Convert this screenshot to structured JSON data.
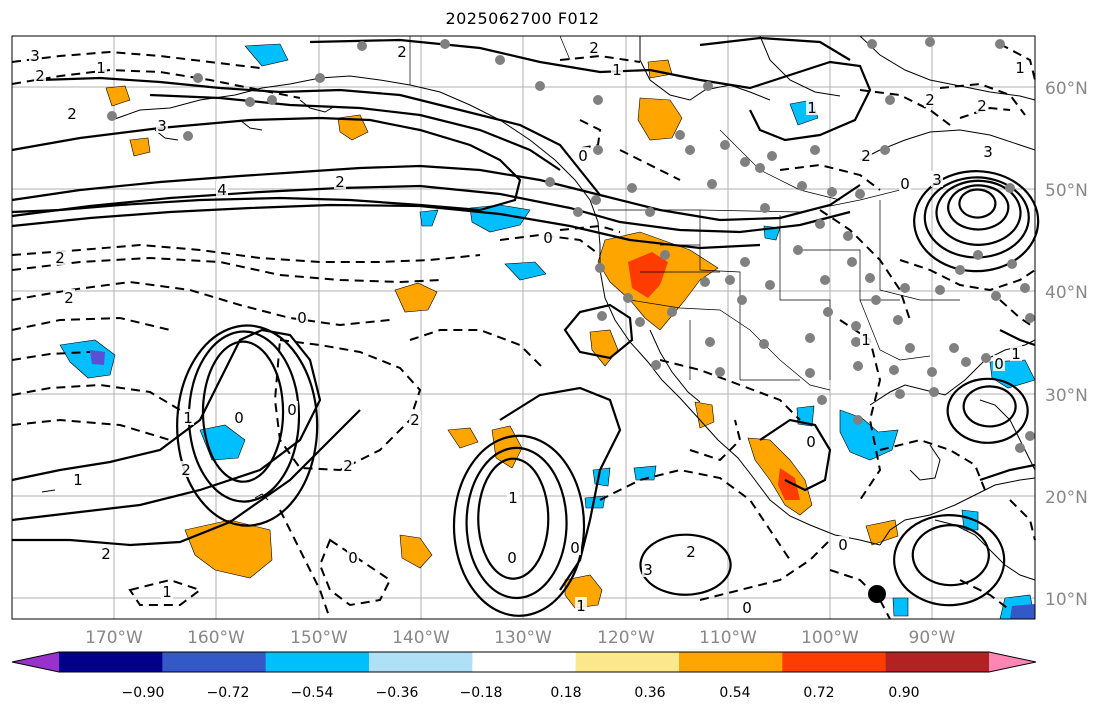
{
  "title": "2025062700 F012",
  "lat_labels": [
    "60°N",
    "50°N",
    "40°N",
    "30°N",
    "20°N",
    "10°N"
  ],
  "lon_labels": [
    "170°W",
    "160°W",
    "150°W",
    "140°W",
    "130°W",
    "120°W",
    "110°W",
    "100°W",
    "90°W"
  ],
  "colorbar": {
    "colors": [
      "#9932cc",
      "#00008b",
      "#3458c8",
      "#00bfff",
      "#b0e0f8",
      "#ffffff",
      "#fbe88c",
      "#ffa500",
      "#ff3c00",
      "#b22222",
      "#ff85b4"
    ],
    "ticks": [
      "−0.90",
      "−0.72",
      "−0.54",
      "−0.36",
      "−0.18",
      "0.18",
      "0.36",
      "0.54",
      "0.72",
      "0.90"
    ]
  },
  "contour_labels": [
    "3",
    "2",
    "1",
    "2",
    "3",
    "4",
    "2",
    "0",
    "1",
    "2",
    "2",
    "0",
    "1",
    "3",
    "0",
    "2",
    "2",
    "3",
    "1",
    "2",
    "2",
    "2",
    "0",
    "2",
    "2",
    "1",
    "0",
    "0",
    "2",
    "1",
    "2",
    "1",
    "0",
    "1",
    "0",
    "0",
    "2",
    "3",
    "0",
    "1",
    "0",
    "0",
    "1",
    "0",
    "1"
  ],
  "map": {
    "projection": "PlateCarree",
    "lon_range": [
      -180,
      -80
    ],
    "lat_range": [
      8,
      66
    ],
    "layers": [
      "coastlines",
      "country borders",
      "state borders",
      "gridlines",
      "solid contours (positive)",
      "dashed contours (negative)",
      "shaded anomaly fill",
      "station dots"
    ]
  }
}
